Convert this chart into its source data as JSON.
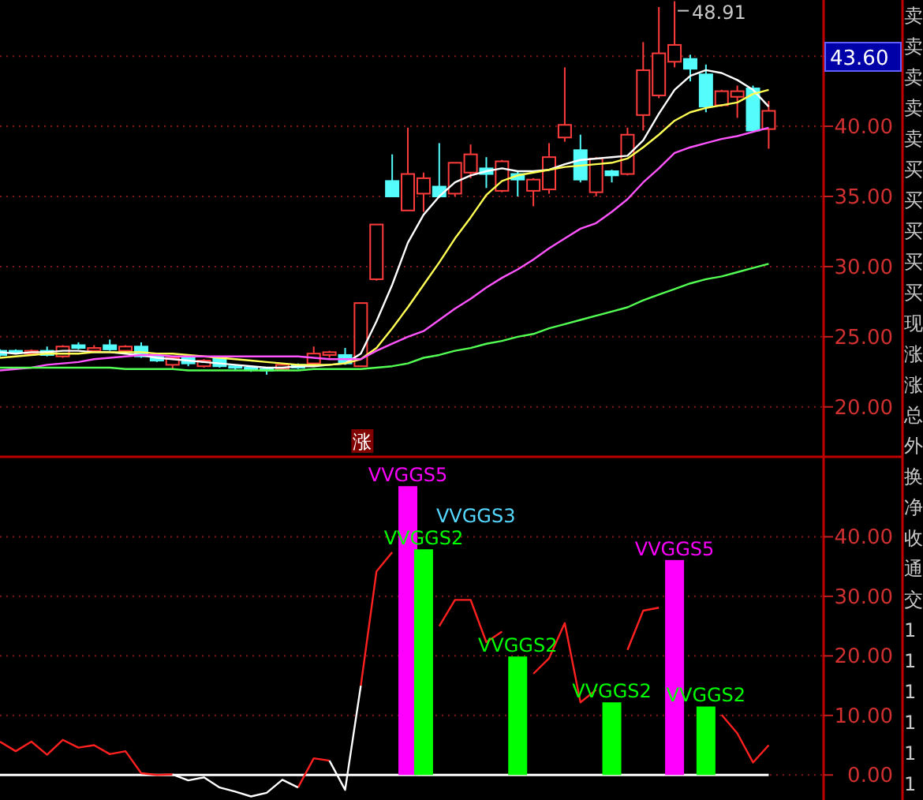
{
  "chart_data": [
    {
      "type": "candlestick",
      "tick_labels": "y",
      "grid": "y",
      "categories": [
        null,
        null,
        null,
        null,
        null,
        null,
        null,
        null,
        null,
        null,
        null,
        null,
        null,
        null,
        null,
        null,
        null,
        null,
        null,
        null,
        null,
        null,
        null,
        null,
        null,
        null,
        null,
        null,
        null,
        null,
        null,
        null,
        null,
        null,
        null,
        null,
        null,
        null,
        null,
        null,
        null,
        null,
        null,
        null,
        null,
        null,
        null,
        null,
        null,
        null
      ],
      "ohlc": [
        [
          24.0,
          24.1,
          23.6,
          23.7
        ],
        [
          24.0,
          24.1,
          23.8,
          23.9
        ],
        [
          23.8,
          24.1,
          23.7,
          24.0
        ],
        [
          24.0,
          24.3,
          23.6,
          23.7
        ],
        [
          23.6,
          24.4,
          23.5,
          24.3
        ],
        [
          24.4,
          24.6,
          24.1,
          24.2
        ],
        [
          24.0,
          24.4,
          23.9,
          24.2
        ],
        [
          24.4,
          24.8,
          24.0,
          24.1
        ],
        [
          24.0,
          24.4,
          23.9,
          24.3
        ],
        [
          24.3,
          24.6,
          23.5,
          23.6
        ],
        [
          23.6,
          23.8,
          23.2,
          23.3
        ],
        [
          23.0,
          23.6,
          22.7,
          23.5
        ],
        [
          23.5,
          23.6,
          22.9,
          23.1
        ],
        [
          22.9,
          23.4,
          22.8,
          23.3
        ],
        [
          23.5,
          23.6,
          22.8,
          22.9
        ],
        [
          22.9,
          23.0,
          22.6,
          22.8
        ],
        [
          22.8,
          22.9,
          22.5,
          22.7
        ],
        [
          22.7,
          22.8,
          22.3,
          22.6
        ],
        [
          22.7,
          23.1,
          22.6,
          23.0
        ],
        [
          23.0,
          23.1,
          22.7,
          22.8
        ],
        [
          23.1,
          24.3,
          23.0,
          23.8
        ],
        [
          23.7,
          24.0,
          23.5,
          23.9
        ],
        [
          23.7,
          24.2,
          23.0,
          23.1
        ],
        [
          22.9,
          27.4,
          22.9,
          27.4
        ],
        [
          29.1,
          33.0,
          29.0,
          33.0
        ],
        [
          36.1,
          38.0,
          35.0,
          35.0
        ],
        [
          34.0,
          39.9,
          34.0,
          36.6
        ],
        [
          35.2,
          36.7,
          33.9,
          36.3
        ],
        [
          35.7,
          38.8,
          34.9,
          35.0
        ],
        [
          35.2,
          37.4,
          35.0,
          37.4
        ],
        [
          36.7,
          38.7,
          36.3,
          38.0
        ],
        [
          37.0,
          37.8,
          35.6,
          36.6
        ],
        [
          35.4,
          37.6,
          35.3,
          37.5
        ],
        [
          36.6,
          36.8,
          35.0,
          36.2
        ],
        [
          35.4,
          36.3,
          34.3,
          36.2
        ],
        [
          35.5,
          38.8,
          35.2,
          37.8
        ],
        [
          39.2,
          44.2,
          38.9,
          40.1
        ],
        [
          38.3,
          39.4,
          36.0,
          36.2
        ],
        [
          35.3,
          37.8,
          35.0,
          37.7
        ],
        [
          36.8,
          36.9,
          36.0,
          36.5
        ],
        [
          36.6,
          39.9,
          36.5,
          39.4
        ],
        [
          40.8,
          46.0,
          39.7,
          44.0
        ],
        [
          42.2,
          48.5,
          42.0,
          45.2
        ],
        [
          44.6,
          48.91,
          44.2,
          45.8
        ],
        [
          44.8,
          45.1,
          43.2,
          44.1
        ],
        [
          43.7,
          44.4,
          41.0,
          41.4
        ],
        [
          41.5,
          42.6,
          41.4,
          42.5
        ],
        [
          42.1,
          42.9,
          40.6,
          42.5
        ],
        [
          42.7,
          42.9,
          39.6,
          39.7
        ],
        [
          39.8,
          41.8,
          38.4,
          41.1
        ]
      ],
      "colors": [
        "#54fcfc",
        "#54fcfc",
        "#ff3c3c",
        "#54fcfc",
        "#ff3c3c",
        "#54fcfc",
        "#ff3c3c",
        "#54fcfc",
        "#ff3c3c",
        "#54fcfc",
        "#54fcfc",
        "#ff3c3c",
        "#54fcfc",
        "#ff3c3c",
        "#54fcfc",
        "#54fcfc",
        "#54fcfc",
        "#54fcfc",
        "#ff3c3c",
        "#54fcfc",
        "#ff3c3c",
        "#ff3c3c",
        "#54fcfc",
        "#ff3c3c",
        "#ff3c3c",
        "#54fcfc",
        "#ff3c3c",
        "#ff3c3c",
        "#54fcfc",
        "#ff3c3c",
        "#ff3c3c",
        "#54fcfc",
        "#ff3c3c",
        "#54fcfc",
        "#ff3c3c",
        "#ff3c3c",
        "#ff3c3c",
        "#54fcfc",
        "#ff3c3c",
        "#54fcfc",
        "#ff3c3c",
        "#ff3c3c",
        "#ff3c3c",
        "#ff3c3c",
        "#54fcfc",
        "#54fcfc",
        "#ff3c3c",
        "#ff3c3c",
        "#54fcfc",
        "#ff3c3c"
      ],
      "series": [
        {
          "type": "line",
          "color": "#ffffff",
          "values": [
            23.9,
            23.8,
            23.9,
            23.9,
            24.0,
            24.0,
            23.9,
            23.9,
            23.8,
            23.7,
            23.5,
            23.4,
            23.3,
            23.2,
            23.1,
            23.0,
            22.9,
            22.8,
            22.8,
            22.9,
            22.9,
            23.0,
            23.1,
            23.8,
            26.1,
            28.7,
            31.7,
            33.7,
            35.0,
            36.0,
            36.5,
            36.8,
            37.0,
            36.8,
            36.8,
            36.9,
            37.3,
            37.6,
            37.7,
            37.8,
            37.9,
            39.0,
            40.9,
            42.6,
            43.6,
            44.0,
            43.8,
            43.3,
            42.6,
            41.4
          ]
        },
        {
          "type": "line",
          "color": "#ffff54",
          "values": [
            23.5,
            23.6,
            23.7,
            23.8,
            23.8,
            23.8,
            23.9,
            23.9,
            23.9,
            23.9,
            23.8,
            23.8,
            23.7,
            23.6,
            23.5,
            23.4,
            23.3,
            23.2,
            23.1,
            23.0,
            23.0,
            23.0,
            23.1,
            23.4,
            24.2,
            25.6,
            27.1,
            28.7,
            30.3,
            32.0,
            33.5,
            35.1,
            36.1,
            36.5,
            36.7,
            36.9,
            37.1,
            37.2,
            37.3,
            37.4,
            37.7,
            38.5,
            39.4,
            40.4,
            41.0,
            41.3,
            41.5,
            41.7,
            42.3,
            42.6
          ]
        },
        {
          "type": "line",
          "color": "#ff54ff",
          "values": [
            22.6,
            22.7,
            22.8,
            23.0,
            23.1,
            23.2,
            23.4,
            23.5,
            23.6,
            23.7,
            23.7,
            23.6,
            23.6,
            23.6,
            23.6,
            23.6,
            23.6,
            23.6,
            23.6,
            23.6,
            23.5,
            23.4,
            23.4,
            23.4,
            24.0,
            24.5,
            25.0,
            25.4,
            26.2,
            27.0,
            27.7,
            28.5,
            29.2,
            29.8,
            30.5,
            31.3,
            32.0,
            32.7,
            33.1,
            33.9,
            34.8,
            36.0,
            37.0,
            38.1,
            38.5,
            38.8,
            39.1,
            39.3,
            39.6,
            39.9
          ]
        },
        {
          "type": "line",
          "color": "#54ff54",
          "values": [
            22.8,
            22.8,
            22.8,
            22.8,
            22.8,
            22.8,
            22.8,
            22.8,
            22.7,
            22.7,
            22.7,
            22.7,
            22.6,
            22.6,
            22.6,
            22.6,
            22.6,
            22.6,
            22.6,
            22.6,
            22.7,
            22.7,
            22.7,
            22.7,
            22.8,
            22.9,
            23.1,
            23.5,
            23.7,
            24.0,
            24.2,
            24.5,
            24.7,
            25.0,
            25.2,
            25.6,
            25.9,
            26.2,
            26.5,
            26.8,
            27.1,
            27.6,
            28.0,
            28.4,
            28.8,
            29.1,
            29.3,
            29.6,
            29.9,
            30.2
          ]
        }
      ],
      "ylim": [
        16.5,
        49.0
      ],
      "yticks": [
        {
          "value": 20,
          "label": "20.00"
        },
        {
          "value": 25,
          "label": "25.00"
        },
        {
          "value": 30,
          "label": "30.00"
        },
        {
          "value": 35,
          "label": "35.00"
        },
        {
          "value": 40,
          "label": "40.00"
        },
        {
          "value": 45,
          "label": null
        }
      ],
      "annotations": [
        "48.91",
        "43.60",
        "涨"
      ]
    },
    {
      "type": "bar",
      "tick_labels": "y",
      "grid": "y",
      "categories": [
        null,
        null,
        null,
        null,
        null,
        null,
        null,
        null,
        null,
        null,
        null,
        null,
        null,
        null,
        null,
        null,
        null,
        null,
        null,
        null,
        null,
        null,
        null,
        null,
        null,
        null,
        null,
        null,
        null,
        null,
        null,
        null,
        null,
        null,
        null,
        null,
        null,
        null,
        null,
        null,
        null,
        null,
        null,
        null,
        null,
        null,
        null,
        null,
        null,
        null
      ],
      "series": [
        {
          "type": "bar",
          "color": "#ff00ff",
          "values": [
            null,
            null,
            null,
            null,
            null,
            null,
            null,
            null,
            null,
            null,
            null,
            null,
            null,
            null,
            null,
            null,
            null,
            null,
            null,
            null,
            null,
            null,
            null,
            null,
            null,
            null,
            48.5,
            null,
            null,
            null,
            null,
            null,
            null,
            null,
            null,
            null,
            null,
            null,
            null,
            null,
            null,
            null,
            null,
            36.1,
            null,
            null,
            null,
            null,
            null,
            null
          ],
          "value_labels": [
            null,
            null,
            null,
            null,
            null,
            null,
            null,
            null,
            null,
            null,
            null,
            null,
            null,
            null,
            null,
            null,
            null,
            null,
            null,
            null,
            null,
            null,
            null,
            null,
            null,
            null,
            "VVGGS5",
            null,
            null,
            null,
            null,
            null,
            null,
            null,
            null,
            null,
            null,
            null,
            null,
            null,
            null,
            null,
            null,
            "VVGGS5",
            null,
            null,
            null,
            null,
            null,
            null
          ]
        },
        {
          "type": "bar",
          "color": "#00ff00",
          "values": [
            null,
            null,
            null,
            null,
            null,
            null,
            null,
            null,
            null,
            null,
            null,
            null,
            null,
            null,
            null,
            null,
            null,
            null,
            null,
            null,
            null,
            null,
            null,
            null,
            null,
            null,
            null,
            37.9,
            null,
            null,
            null,
            null,
            null,
            19.9,
            null,
            null,
            null,
            null,
            null,
            12.2,
            null,
            null,
            null,
            null,
            null,
            11.5,
            null,
            null,
            null,
            null
          ],
          "value_labels": [
            null,
            null,
            null,
            null,
            null,
            null,
            null,
            null,
            null,
            null,
            null,
            null,
            null,
            null,
            null,
            null,
            null,
            null,
            null,
            null,
            null,
            null,
            null,
            null,
            null,
            null,
            null,
            "VVGGS2",
            null,
            null,
            null,
            null,
            null,
            "VVGGS2",
            null,
            null,
            null,
            null,
            null,
            "VVGGS2",
            null,
            null,
            null,
            null,
            null,
            "VVGGS2",
            null,
            null,
            null,
            null
          ]
        },
        {
          "type": "line",
          "color": "#ff2020",
          "values": [
            5.6,
            4.0,
            5.6,
            3.4,
            5.9,
            4.6,
            5.0,
            3.5,
            4.0,
            0.3,
            0.0,
            0.1,
            null,
            null,
            null,
            null,
            null,
            null,
            null,
            -2.1,
            2.8,
            2.4,
            null,
            15.0,
            34.2,
            37.4,
            null,
            null,
            25.0,
            29.4,
            29.4,
            22.3,
            24.1,
            null,
            17.0,
            19.6,
            25.5,
            12.2,
            14.3,
            null,
            21.0,
            27.6,
            28.1,
            null,
            null,
            null,
            10.1,
            7.0,
            2.1,
            5.0
          ]
        },
        {
          "type": "line",
          "color": "#ffffff",
          "values": [
            null,
            null,
            null,
            null,
            null,
            null,
            null,
            null,
            null,
            null,
            null,
            0.1,
            -0.9,
            -0.4,
            -2.1,
            -2.8,
            -3.6,
            -3.0,
            -0.8,
            -2.1,
            null,
            2.4,
            -2.5,
            15.0,
            null,
            null,
            null,
            null,
            null,
            null,
            null,
            null,
            null,
            null,
            null,
            null,
            null,
            null,
            null,
            null,
            null,
            null,
            null,
            null,
            null,
            null,
            null,
            null,
            null,
            null
          ]
        }
      ],
      "ylim": [
        -4.2,
        53.3
      ],
      "yticks": [
        {
          "value": 0,
          "label": "0.00"
        },
        {
          "value": 10,
          "label": "10.00"
        },
        {
          "value": 20,
          "label": "20.00"
        },
        {
          "value": 30,
          "label": "30.00"
        },
        {
          "value": 40,
          "label": "40.00"
        }
      ],
      "ref_lines": [
        {
          "axis": "y",
          "value": 0,
          "color": "#ffffff"
        }
      ],
      "annotations": [
        "VVGGS3"
      ]
    },
    {
      "type": "other",
      "annotations": [
        "卖",
        "卖",
        "卖",
        "卖",
        "卖",
        "买",
        "买",
        "买",
        "买",
        "买",
        "现",
        "涨",
        "涨",
        "总",
        "外",
        "换",
        "净",
        "收",
        "通",
        "交",
        "1",
        "1",
        "1",
        "1",
        "1",
        "1"
      ]
    }
  ]
}
